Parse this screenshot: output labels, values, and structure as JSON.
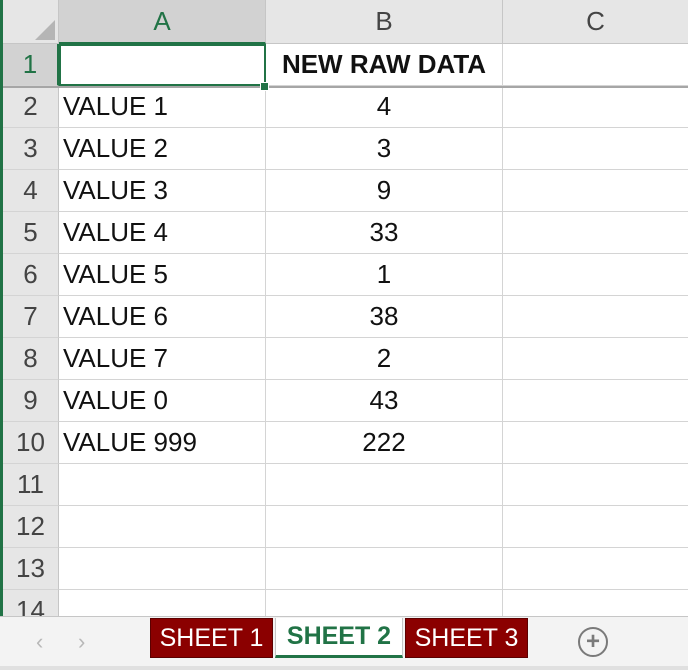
{
  "columns": [
    "A",
    "B",
    "C"
  ],
  "rows": [
    "1",
    "2",
    "3",
    "4",
    "5",
    "6",
    "7",
    "8",
    "9",
    "10",
    "11",
    "12",
    "13",
    "14"
  ],
  "cells": [
    {
      "a": "",
      "b": "NEW RAW DATA"
    },
    {
      "a": "VALUE 1",
      "b": "4"
    },
    {
      "a": "VALUE 2",
      "b": "3"
    },
    {
      "a": "VALUE 3",
      "b": "9"
    },
    {
      "a": "VALUE 4",
      "b": "33"
    },
    {
      "a": "VALUE 5",
      "b": "1"
    },
    {
      "a": "VALUE 6",
      "b": "38"
    },
    {
      "a": "VALUE 7",
      "b": "2"
    },
    {
      "a": "VALUE 0",
      "b": "43"
    },
    {
      "a": "VALUE 999",
      "b": "222"
    },
    {
      "a": "",
      "b": ""
    },
    {
      "a": "",
      "b": ""
    },
    {
      "a": "",
      "b": ""
    },
    {
      "a": "",
      "b": ""
    }
  ],
  "selected_cell": "A1",
  "sheet_tabs": [
    {
      "label": "SHEET 1",
      "active": false
    },
    {
      "label": "SHEET 2",
      "active": true
    },
    {
      "label": "SHEET 3",
      "active": false
    }
  ],
  "nav": {
    "prev_icon": "‹",
    "next_icon": "›",
    "add_icon": "+"
  },
  "colors": {
    "accent": "#217346",
    "tab_inactive": "#8b0000",
    "header_bg": "#e6e6e6"
  }
}
